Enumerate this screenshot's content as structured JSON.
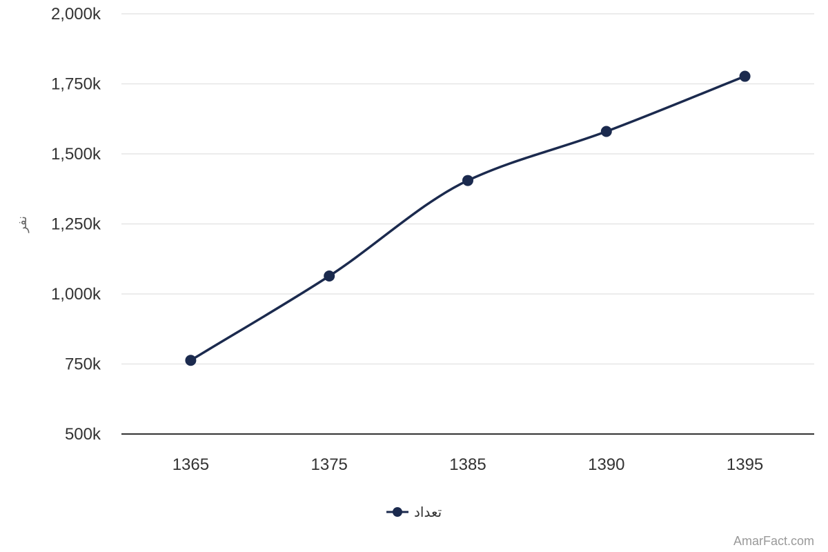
{
  "chart_data": {
    "type": "line",
    "x": [
      "1365",
      "1375",
      "1385",
      "1390",
      "1395"
    ],
    "series": [
      {
        "name": "تعداد",
        "values": [
          763000,
          1064000,
          1405000,
          1580000,
          1777000
        ]
      }
    ],
    "ylabel": "نفر",
    "ylim": [
      500000,
      2000000
    ],
    "yticks": [
      500000,
      750000,
      1000000,
      1250000,
      1500000,
      1750000,
      2000000
    ],
    "ytick_labels": [
      "500k",
      "750k",
      "1,000k",
      "1,250k",
      "1,500k",
      "1,750k",
      "2,000k"
    ],
    "grid": true,
    "smooth": true,
    "legend_position": "bottom-center",
    "series_color": "#1b2a4e"
  },
  "credit": "AmarFact.com"
}
